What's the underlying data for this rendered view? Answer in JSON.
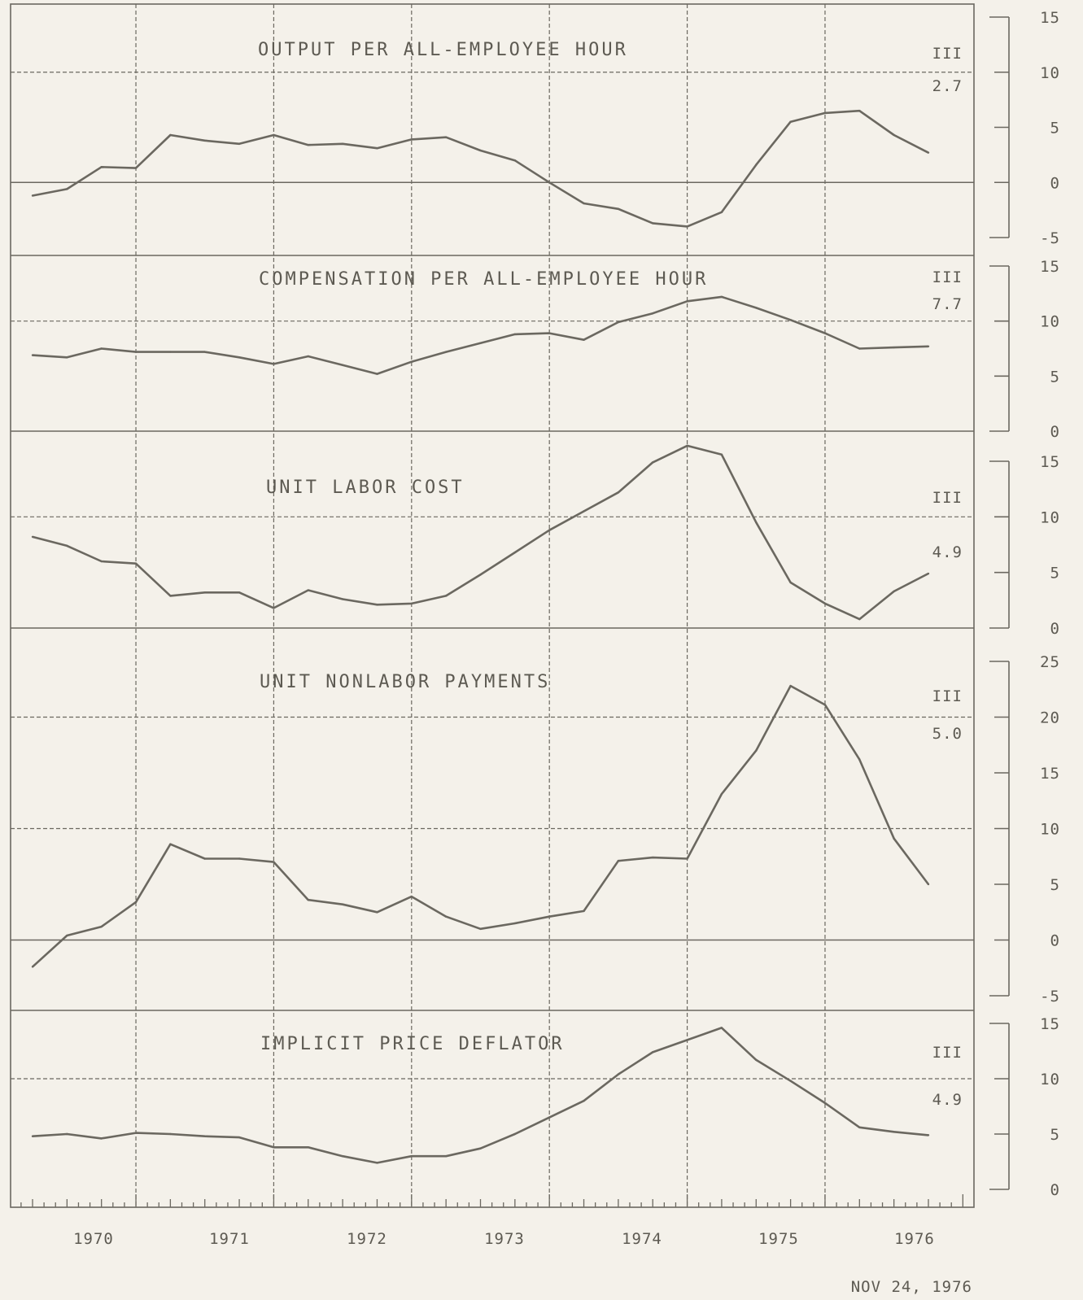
{
  "footer_date": "NOV 24, 1976",
  "chart_data": [
    {
      "type": "line",
      "title": "OUTPUT PER ALL-EMPLOYEE HOUR",
      "latest_period": "III",
      "latest_value": "2.7",
      "y_ticks": [
        "15",
        "10",
        "5",
        "0",
        "-5"
      ],
      "ylim": [
        -5,
        15
      ],
      "x_labels": [
        "1970",
        "1971",
        "1972",
        "1973",
        "1974",
        "1975",
        "1976"
      ],
      "x": [
        1969.75,
        1970.0,
        1970.25,
        1970.5,
        1970.75,
        1971.0,
        1971.25,
        1971.5,
        1971.75,
        1972.0,
        1972.25,
        1972.5,
        1972.75,
        1973.0,
        1973.25,
        1973.5,
        1973.75,
        1974.0,
        1974.25,
        1974.5,
        1974.75,
        1975.0,
        1975.25,
        1975.5,
        1975.75,
        1976.0,
        1976.25
      ],
      "values": [
        -1.2,
        -0.6,
        1.4,
        1.3,
        4.3,
        3.8,
        3.5,
        4.3,
        3.4,
        3.5,
        3.1,
        3.9,
        4.1,
        2.9,
        2.0,
        0.0,
        -1.9,
        -2.4,
        -3.7,
        -4.0,
        -2.7,
        1.6,
        5.5,
        6.3,
        6.5,
        4.3,
        2.7
      ]
    },
    {
      "type": "line",
      "title": "COMPENSATION PER ALL-EMPLOYEE HOUR",
      "latest_period": "III",
      "latest_value": "7.7",
      "y_ticks": [
        "15",
        "10",
        "5",
        "0"
      ],
      "ylim": [
        0,
        15
      ],
      "x": [
        1969.75,
        1970.0,
        1970.25,
        1970.5,
        1970.75,
        1971.0,
        1971.25,
        1971.5,
        1971.75,
        1972.0,
        1972.25,
        1972.5,
        1972.75,
        1973.0,
        1973.25,
        1973.5,
        1973.75,
        1974.0,
        1974.25,
        1974.5,
        1974.75,
        1975.0,
        1975.25,
        1975.5,
        1975.75,
        1976.0,
        1976.25
      ],
      "values": [
        6.9,
        6.7,
        7.5,
        7.2,
        7.2,
        7.2,
        6.7,
        6.1,
        6.8,
        6.0,
        5.2,
        6.3,
        7.2,
        8.0,
        8.8,
        8.9,
        8.3,
        9.9,
        10.7,
        11.8,
        12.2,
        11.2,
        10.1,
        8.9,
        7.5,
        7.6,
        7.7
      ]
    },
    {
      "type": "line",
      "title": "UNIT LABOR COST",
      "latest_period": "III",
      "latest_value": "4.9",
      "y_ticks": [
        "15",
        "10",
        "5",
        "0"
      ],
      "ylim": [
        0,
        15
      ],
      "x": [
        1969.75,
        1970.0,
        1970.25,
        1970.5,
        1970.75,
        1971.0,
        1971.25,
        1971.5,
        1971.75,
        1972.0,
        1972.25,
        1972.5,
        1972.75,
        1973.0,
        1973.25,
        1973.5,
        1973.75,
        1974.0,
        1974.25,
        1974.5,
        1974.75,
        1975.0,
        1975.25,
        1975.5,
        1975.75,
        1976.0,
        1976.25
      ],
      "values": [
        8.2,
        7.4,
        6.0,
        5.8,
        2.9,
        3.2,
        3.2,
        1.8,
        3.4,
        2.6,
        2.1,
        2.2,
        2.9,
        4.8,
        6.8,
        8.8,
        10.5,
        12.2,
        14.9,
        16.4,
        15.6,
        9.5,
        4.1,
        2.2,
        0.8,
        3.3,
        4.9
      ]
    },
    {
      "type": "line",
      "title": "UNIT NONLABOR PAYMENTS",
      "latest_period": "III",
      "latest_value": "5.0",
      "y_ticks": [
        "25",
        "20",
        "15",
        "10",
        "5",
        "0",
        "-5"
      ],
      "ylim": [
        -5,
        25
      ],
      "x": [
        1969.75,
        1970.0,
        1970.25,
        1970.5,
        1970.75,
        1971.0,
        1971.25,
        1971.5,
        1971.75,
        1972.0,
        1972.25,
        1972.5,
        1972.75,
        1973.0,
        1973.25,
        1973.5,
        1973.75,
        1974.0,
        1974.25,
        1974.5,
        1974.75,
        1975.0,
        1975.25,
        1975.5,
        1975.75,
        1976.0,
        1976.25
      ],
      "values": [
        -2.4,
        0.4,
        1.2,
        3.4,
        8.6,
        7.3,
        7.3,
        7.0,
        3.6,
        3.2,
        2.5,
        3.9,
        2.1,
        1.0,
        1.5,
        2.1,
        2.6,
        7.1,
        7.4,
        7.3,
        13.1,
        17.0,
        22.8,
        21.1,
        16.2,
        9.1,
        5.0
      ]
    },
    {
      "type": "line",
      "title": "IMPLICIT PRICE DEFLATOR",
      "latest_period": "III",
      "latest_value": "4.9",
      "y_ticks": [
        "15",
        "10",
        "5",
        "0"
      ],
      "ylim": [
        0,
        15
      ],
      "x": [
        1969.75,
        1970.0,
        1970.25,
        1970.5,
        1970.75,
        1971.0,
        1971.25,
        1971.5,
        1971.75,
        1972.0,
        1972.25,
        1972.5,
        1972.75,
        1973.0,
        1973.25,
        1973.5,
        1973.75,
        1974.0,
        1974.25,
        1974.5,
        1974.75,
        1975.0,
        1975.25,
        1975.5,
        1975.75,
        1976.0,
        1976.25
      ],
      "values": [
        4.8,
        5.0,
        4.6,
        5.1,
        5.0,
        4.8,
        4.7,
        3.8,
        3.8,
        3.0,
        2.4,
        3.0,
        3.0,
        3.7,
        5.0,
        6.5,
        8.0,
        10.4,
        12.4,
        13.5,
        14.6,
        11.7,
        9.8,
        7.8,
        5.6,
        5.2,
        4.9
      ]
    }
  ]
}
